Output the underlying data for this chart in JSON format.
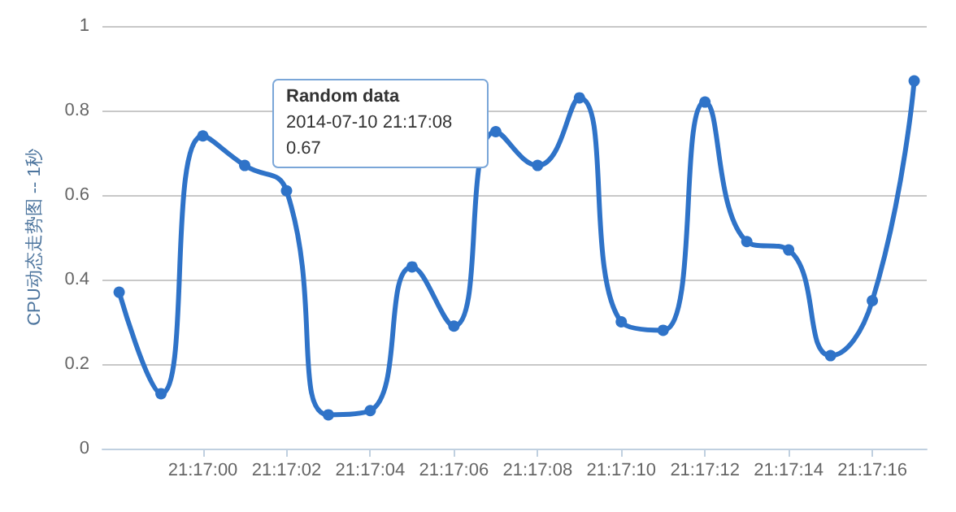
{
  "chart_data": {
    "type": "line",
    "ylabel": "CPU动态走势图 -- 1秒",
    "x": [
      "2014-07-10T21:16:58",
      "2014-07-10T21:16:59",
      "2014-07-10T21:17:00",
      "2014-07-10T21:17:01",
      "2014-07-10T21:17:02",
      "2014-07-10T21:17:03",
      "2014-07-10T21:17:04",
      "2014-07-10T21:17:05",
      "2014-07-10T21:17:06",
      "2014-07-10T21:17:07",
      "2014-07-10T21:17:08",
      "2014-07-10T21:17:09",
      "2014-07-10T21:17:10",
      "2014-07-10T21:17:11",
      "2014-07-10T21:17:12",
      "2014-07-10T21:17:13",
      "2014-07-10T21:17:14",
      "2014-07-10T21:17:15",
      "2014-07-10T21:17:16",
      "2014-07-10T21:17:17"
    ],
    "series": [
      {
        "color": "#2f73c8",
        "values": [
          0.37,
          0.13,
          0.74,
          0.67,
          0.61,
          0.08,
          0.09,
          0.43,
          0.29,
          0.75,
          0.67,
          0.83,
          0.3,
          0.28,
          0.82,
          0.49,
          0.47,
          0.22,
          0.35,
          0.87
        ]
      }
    ],
    "xlim": [
      "2014-07-10T21:16:57.6",
      "2014-07-10T21:17:17.3"
    ],
    "xticks": [
      {
        "value": "2014-07-10T21:17:00",
        "label": "21:17:00"
      },
      {
        "value": "2014-07-10T21:17:02",
        "label": "21:17:02"
      },
      {
        "value": "2014-07-10T21:17:04",
        "label": "21:17:04"
      },
      {
        "value": "2014-07-10T21:17:06",
        "label": "21:17:06"
      },
      {
        "value": "2014-07-10T21:17:08",
        "label": "21:17:08"
      },
      {
        "value": "2014-07-10T21:17:10",
        "label": "21:17:10"
      },
      {
        "value": "2014-07-10T21:17:12",
        "label": "21:17:12"
      },
      {
        "value": "2014-07-10T21:17:14",
        "label": "21:17:14"
      },
      {
        "value": "2014-07-10T21:17:16",
        "label": "21:17:16"
      }
    ],
    "ylim": [
      0,
      1
    ],
    "yticks": [
      0,
      0.2,
      0.4,
      0.6,
      0.8,
      1
    ],
    "grid": "y",
    "marker": "circle",
    "line_style": "solid",
    "annotations": [
      "Random data\n2014-07-10 21:17:08\n0.67"
    ]
  }
}
